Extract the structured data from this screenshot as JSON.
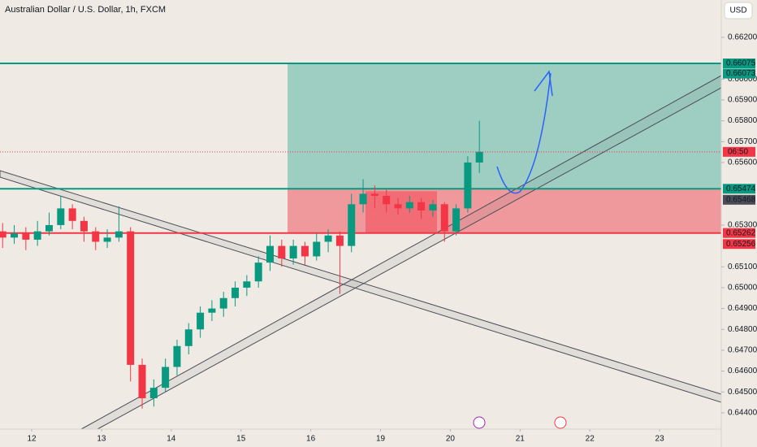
{
  "chart_data": {
    "type": "candlestick",
    "title": "Australian Dollar / U.S. Dollar, 1h, FXCM",
    "currency": "USD",
    "up_color": "#089981",
    "down_color": "#f23645",
    "x": [
      -10,
      -6,
      -2,
      2,
      6,
      10,
      14,
      18,
      22,
      26,
      30,
      34,
      38,
      42,
      46,
      50,
      54,
      58,
      62,
      66,
      70,
      74,
      78,
      82,
      86,
      90,
      94,
      98,
      102,
      106,
      110,
      114,
      118,
      122,
      126,
      130,
      134,
      138,
      142,
      146,
      150,
      154
    ],
    "open": [
      0.6527,
      0.6524,
      0.6526,
      0.6523,
      0.6527,
      0.653,
      0.6538,
      0.6532,
      0.6527,
      0.6522,
      0.6524,
      0.6527,
      0.6463,
      0.6447,
      0.6452,
      0.6462,
      0.6472,
      0.648,
      0.6488,
      0.649,
      0.6495,
      0.65,
      0.6503,
      0.6512,
      0.652,
      0.6514,
      0.652,
      0.6515,
      0.6522,
      0.6525,
      0.652,
      0.654,
      0.6545,
      0.6544,
      0.654,
      0.6538,
      0.6541,
      0.6537,
      0.654,
      0.6527,
      0.6538,
      0.656
    ],
    "high": [
      0.6531,
      0.653,
      0.6529,
      0.6532,
      0.6536,
      0.6544,
      0.654,
      0.6534,
      0.6529,
      0.6528,
      0.6539,
      0.6529,
      0.6466,
      0.6456,
      0.6466,
      0.6475,
      0.6483,
      0.6491,
      0.6494,
      0.6498,
      0.6503,
      0.6506,
      0.6515,
      0.6525,
      0.6523,
      0.6523,
      0.6522,
      0.6526,
      0.6528,
      0.6527,
      0.6545,
      0.6552,
      0.6549,
      0.6547,
      0.6543,
      0.6544,
      0.6543,
      0.6542,
      0.6541,
      0.654,
      0.6563,
      0.658
    ],
    "low": [
      0.6519,
      0.6521,
      0.6518,
      0.652,
      0.6525,
      0.6528,
      0.6528,
      0.6522,
      0.6518,
      0.6519,
      0.6522,
      0.6455,
      0.6442,
      0.6443,
      0.645,
      0.6458,
      0.6468,
      0.6476,
      0.6484,
      0.6486,
      0.6491,
      0.6496,
      0.65,
      0.6508,
      0.651,
      0.6511,
      0.6511,
      0.6513,
      0.6517,
      0.6497,
      0.6517,
      0.6536,
      0.6538,
      0.6536,
      0.6535,
      0.6536,
      0.6533,
      0.6534,
      0.6522,
      0.6525,
      0.6536,
      0.6555
    ],
    "close": [
      0.6524,
      0.6526,
      0.6523,
      0.6527,
      0.653,
      0.6538,
      0.6532,
      0.6527,
      0.6522,
      0.6524,
      0.6527,
      0.6463,
      0.6447,
      0.6452,
      0.6462,
      0.6472,
      0.648,
      0.6488,
      0.649,
      0.6495,
      0.65,
      0.6503,
      0.6512,
      0.652,
      0.6514,
      0.652,
      0.6515,
      0.6522,
      0.6525,
      0.652,
      0.654,
      0.6545,
      0.6544,
      0.654,
      0.6538,
      0.6541,
      0.6537,
      0.654,
      0.6527,
      0.6538,
      0.656,
      0.65651
    ],
    "countdown": "06:50",
    "levels": [
      {
        "value": 0.66075,
        "second": 0.66073,
        "color": "#089981"
      },
      {
        "value": 0.65474,
        "second": 0.65468,
        "color": "#089981"
      },
      {
        "value": 0.65262,
        "second": 0.65256,
        "color": "#f23645"
      }
    ],
    "xlim": [
      -10.9,
      237.2
    ],
    "xticks": [
      {
        "value": 0,
        "label": "12"
      },
      {
        "value": 24,
        "label": "13"
      },
      {
        "value": 48,
        "label": "14"
      },
      {
        "value": 72,
        "label": "15"
      },
      {
        "value": 96,
        "label": "16"
      },
      {
        "value": 120,
        "label": "19"
      },
      {
        "value": 144,
        "label": "20"
      },
      {
        "value": 168,
        "label": "21"
      },
      {
        "value": 192,
        "label": "22"
      },
      {
        "value": 216,
        "label": "23"
      }
    ],
    "ylim": [
      0.64353,
      0.66379
    ],
    "yticks": [
      {
        "value": 0.662,
        "label": "0.66200"
      },
      {
        "value": 0.66,
        "label": "0.66000"
      },
      {
        "value": 0.659,
        "label": "0.65900"
      },
      {
        "value": 0.658,
        "label": "0.65800"
      },
      {
        "value": 0.657,
        "label": "0.65700"
      },
      {
        "value": 0.656,
        "label": "0.65600"
      },
      {
        "value": 0.653,
        "label": "0.65300"
      },
      {
        "value": 0.651,
        "label": "0.65100"
      },
      {
        "value": 0.65,
        "label": "0.65000"
      },
      {
        "value": 0.649,
        "label": "0.64900"
      },
      {
        "value": 0.648,
        "label": "0.64800"
      },
      {
        "value": 0.647,
        "label": "0.64700"
      },
      {
        "value": 0.646,
        "label": "0.64600"
      },
      {
        "value": 0.645,
        "label": "0.64500"
      },
      {
        "value": 0.644,
        "label": "0.64400"
      }
    ]
  }
}
